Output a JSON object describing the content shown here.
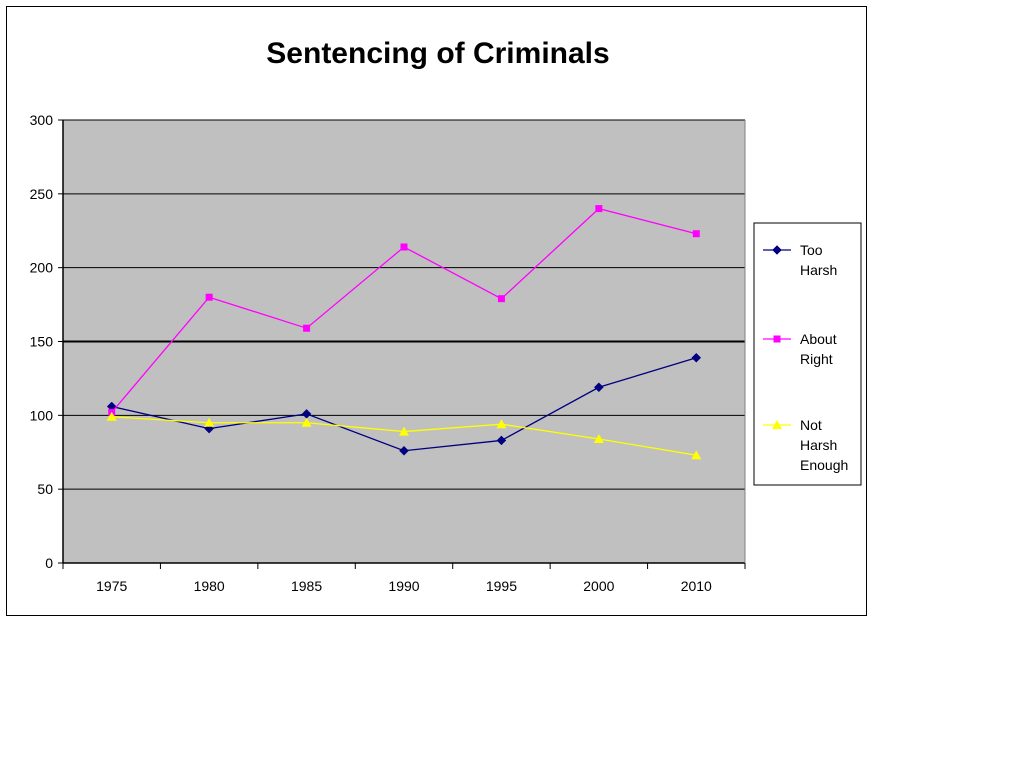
{
  "chart_data": {
    "type": "line",
    "title": "Sentencing of Criminals",
    "xlabel": "",
    "ylabel": "",
    "categories": [
      "1975",
      "1980",
      "1985",
      "1990",
      "1995",
      "2000",
      "2010"
    ],
    "ylim": [
      0,
      300
    ],
    "yticks": [
      "0",
      "50",
      "100",
      "150",
      "200",
      "250",
      "300"
    ],
    "grid": true,
    "legend_position": "right",
    "plot_background": "#C0C0C0",
    "series": [
      {
        "name": "Too Harsh",
        "legend_lines": [
          "Too",
          "Harsh"
        ],
        "color": "#000080",
        "marker": "diamond",
        "values": [
          106,
          91,
          101,
          76,
          83,
          119,
          139
        ]
      },
      {
        "name": "About Right",
        "legend_lines": [
          "About",
          "Right"
        ],
        "color": "#FF00FF",
        "marker": "square",
        "values": [
          102,
          180,
          159,
          214,
          179,
          240,
          223
        ]
      },
      {
        "name": "Not Harsh Enough",
        "legend_lines": [
          "Not",
          "Harsh",
          "Enough"
        ],
        "color": "#FFFF00",
        "marker": "triangle",
        "values": [
          99,
          95,
          95,
          89,
          94,
          84,
          73
        ]
      }
    ]
  }
}
